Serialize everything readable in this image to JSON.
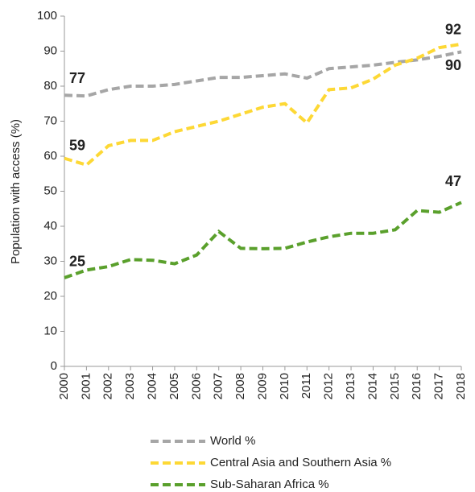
{
  "chart_data": {
    "type": "line",
    "y_label": "Population with access (%)",
    "x": [
      2000,
      2001,
      2002,
      2003,
      2004,
      2005,
      2006,
      2007,
      2008,
      2009,
      2010,
      2011,
      2012,
      2013,
      2014,
      2015,
      2016,
      2017,
      2018
    ],
    "xlim": [
      2000,
      2018
    ],
    "xticks": [
      2000,
      2001,
      2002,
      2003,
      2004,
      2005,
      2006,
      2007,
      2008,
      2009,
      2010,
      2011,
      2012,
      2013,
      2014,
      2015,
      2016,
      2017,
      2018
    ],
    "ylim": [
      0,
      100
    ],
    "yticks": [
      0,
      10,
      20,
      30,
      40,
      50,
      60,
      70,
      80,
      90,
      100
    ],
    "grid": false,
    "legend": "bottom",
    "series": [
      {
        "name": "World %",
        "color": "#a6a6a6",
        "values": [
          77.4,
          77.2,
          79,
          80,
          80,
          80.5,
          81.5,
          82.5,
          82.5,
          83,
          83.5,
          82.3,
          85,
          85.5,
          86,
          86.8,
          87.5,
          88.5,
          89.8
        ],
        "value_labels": [
          "77",
          null,
          null,
          null,
          null,
          null,
          null,
          null,
          null,
          null,
          null,
          null,
          null,
          null,
          null,
          null,
          null,
          null,
          "90"
        ]
      },
      {
        "name": "Central Asia and Southern Asia %",
        "color": "#fdd835",
        "values": [
          59.4,
          57.5,
          63,
          64.5,
          64.5,
          67,
          68.5,
          70,
          72,
          74,
          75,
          69.5,
          79,
          79.5,
          82,
          86,
          88,
          91,
          92
        ],
        "value_labels": [
          "59",
          null,
          null,
          null,
          null,
          null,
          null,
          null,
          null,
          null,
          null,
          null,
          null,
          null,
          null,
          null,
          null,
          null,
          "92"
        ]
      },
      {
        "name": "Sub-Saharan Africa %",
        "color": "#5aa02c",
        "values": [
          25.3,
          27.5,
          28.5,
          30.5,
          30.3,
          29.3,
          31.8,
          38.5,
          33.7,
          33.6,
          33.7,
          35.5,
          37,
          38,
          38,
          39,
          44.5,
          44,
          46.8
        ],
        "value_labels": [
          "25",
          null,
          null,
          null,
          null,
          null,
          null,
          null,
          null,
          null,
          null,
          null,
          null,
          null,
          null,
          null,
          null,
          null,
          "47"
        ]
      }
    ]
  }
}
